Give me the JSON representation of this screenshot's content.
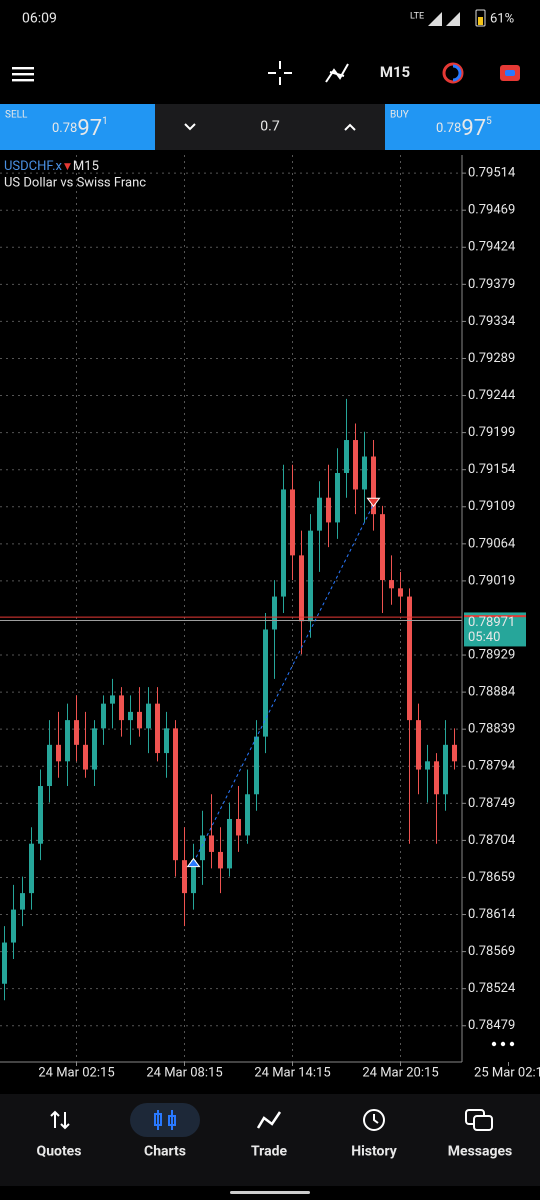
{
  "status_bar": {
    "time": "06:09",
    "network": "LTE",
    "battery": "61%"
  },
  "toolbar": {
    "timeframe": "M15"
  },
  "trade_panel": {
    "sell": {
      "label": "SELL",
      "price_prefix": "0.78",
      "price_main": "97",
      "price_suffix": "1"
    },
    "volume": "0.7",
    "buy": {
      "label": "BUY",
      "price_prefix": "0.78",
      "price_main": "97",
      "price_suffix": "5"
    }
  },
  "chart_data": {
    "type": "candlestick",
    "symbol": "USDCHF.x",
    "timeframe": "M15",
    "description": "US Dollar vs Swiss Franc",
    "up_color": "#26a69a",
    "down_color": "#ef5350",
    "grid": true,
    "ylim": [
      0.78435,
      0.79536
    ],
    "yticks": [
      0.79514,
      0.79469,
      0.79424,
      0.79379,
      0.79334,
      0.79289,
      0.79244,
      0.79199,
      0.79154,
      0.79109,
      0.79064,
      0.79019,
      0.78929,
      0.78884,
      0.78839,
      0.78794,
      0.78749,
      0.78704,
      0.78659,
      0.78614,
      0.78569,
      0.78524,
      0.78479
    ],
    "xticks": [
      {
        "value": 8,
        "label": "24 Mar 02:15"
      },
      {
        "value": 20,
        "label": "24 Mar 08:15"
      },
      {
        "value": 32,
        "label": "24 Mar 14:15"
      },
      {
        "value": 44,
        "label": "24 Mar 20:15"
      },
      {
        "value": 56,
        "label": "25 Mar 02:1"
      }
    ],
    "bid": 0.78971,
    "ask": 0.78975,
    "timer": "05:40",
    "trade_line": {
      "x": [
        21,
        41
      ],
      "y": [
        0.78677,
        0.79112
      ]
    },
    "candles": [
      [
        0.7853,
        0.786,
        0.7851,
        0.7858
      ],
      [
        0.7858,
        0.7865,
        0.7856,
        0.7862
      ],
      [
        0.7862,
        0.7866,
        0.786,
        0.7864
      ],
      [
        0.7864,
        0.7872,
        0.7862,
        0.787
      ],
      [
        0.787,
        0.7879,
        0.7868,
        0.7877
      ],
      [
        0.7877,
        0.7885,
        0.7875,
        0.7882
      ],
      [
        0.7882,
        0.7886,
        0.7878,
        0.788
      ],
      [
        0.788,
        0.7887,
        0.7877,
        0.7885
      ],
      [
        0.7885,
        0.7888,
        0.788,
        0.7882
      ],
      [
        0.7882,
        0.7886,
        0.7878,
        0.7879
      ],
      [
        0.7879,
        0.7885,
        0.7877,
        0.7884
      ],
      [
        0.7884,
        0.7888,
        0.7882,
        0.7887
      ],
      [
        0.7887,
        0.789,
        0.7884,
        0.7888
      ],
      [
        0.7888,
        0.7889,
        0.7883,
        0.7885
      ],
      [
        0.7885,
        0.7888,
        0.7882,
        0.7886
      ],
      [
        0.7886,
        0.7889,
        0.7883,
        0.7884
      ],
      [
        0.7884,
        0.7889,
        0.7881,
        0.7887
      ],
      [
        0.7887,
        0.7889,
        0.788,
        0.7881
      ],
      [
        0.7881,
        0.7886,
        0.7878,
        0.7884
      ],
      [
        0.7884,
        0.7885,
        0.7866,
        0.7868
      ],
      [
        0.7868,
        0.7872,
        0.786,
        0.7864
      ],
      [
        0.7864,
        0.787,
        0.7862,
        0.7868
      ],
      [
        0.7868,
        0.7874,
        0.7865,
        0.7871
      ],
      [
        0.7871,
        0.7876,
        0.7867,
        0.7869
      ],
      [
        0.7869,
        0.7872,
        0.7864,
        0.7867
      ],
      [
        0.7867,
        0.7875,
        0.7866,
        0.7873
      ],
      [
        0.7873,
        0.7877,
        0.7869,
        0.7871
      ],
      [
        0.7871,
        0.7879,
        0.787,
        0.7876
      ],
      [
        0.7876,
        0.7885,
        0.7874,
        0.7883
      ],
      [
        0.7883,
        0.7898,
        0.7881,
        0.7896
      ],
      [
        0.7896,
        0.7902,
        0.789,
        0.79
      ],
      [
        0.79,
        0.7916,
        0.7898,
        0.7913
      ],
      [
        0.7913,
        0.7916,
        0.7902,
        0.7905
      ],
      [
        0.7905,
        0.7908,
        0.7893,
        0.7897
      ],
      [
        0.7897,
        0.791,
        0.7895,
        0.7908
      ],
      [
        0.7908,
        0.7914,
        0.7903,
        0.7912
      ],
      [
        0.7912,
        0.7916,
        0.7906,
        0.7909
      ],
      [
        0.7909,
        0.7918,
        0.7907,
        0.7915
      ],
      [
        0.7915,
        0.7924,
        0.7912,
        0.7919
      ],
      [
        0.7919,
        0.7921,
        0.791,
        0.7913
      ],
      [
        0.7913,
        0.792,
        0.7909,
        0.7917
      ],
      [
        0.7917,
        0.7919,
        0.7908,
        0.791
      ],
      [
        0.791,
        0.7911,
        0.7898,
        0.7902
      ],
      [
        0.7902,
        0.7905,
        0.7899,
        0.7901
      ],
      [
        0.7901,
        0.7903,
        0.7898,
        0.79
      ],
      [
        0.79,
        0.7901,
        0.787,
        0.7885
      ],
      [
        0.7885,
        0.7887,
        0.7876,
        0.7879
      ],
      [
        0.7879,
        0.7882,
        0.7875,
        0.788
      ],
      [
        0.788,
        0.7881,
        0.787,
        0.7876
      ],
      [
        0.7876,
        0.7885,
        0.7874,
        0.7882
      ],
      [
        0.7882,
        0.7884,
        0.7879,
        0.788
      ]
    ]
  },
  "nav": {
    "items": [
      "Quotes",
      "Charts",
      "Trade",
      "History",
      "Messages"
    ]
  }
}
